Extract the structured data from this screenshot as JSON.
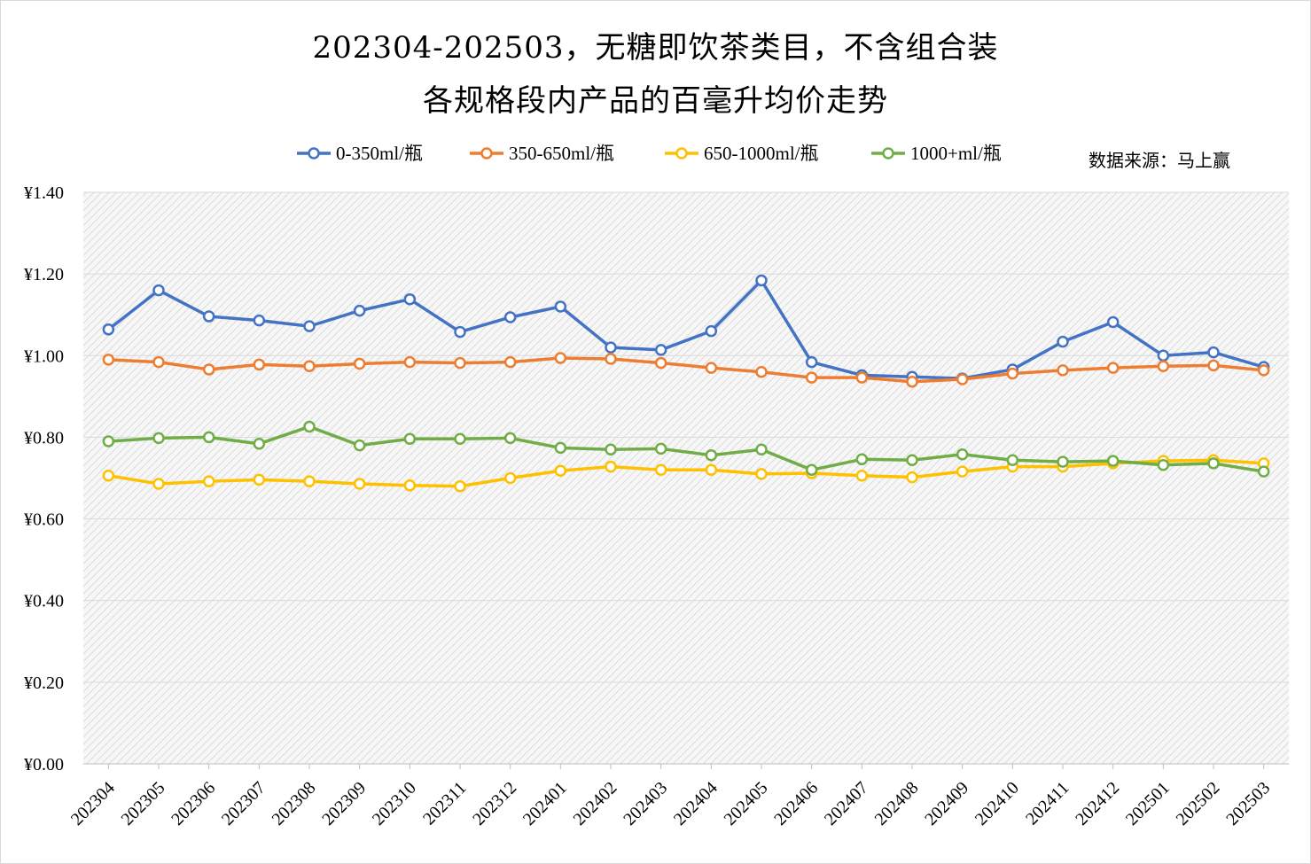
{
  "chart_data": {
    "type": "line",
    "title": "202304-202503，无糖即饮茶类目，不含组合装",
    "subtitle": "各规格段内产品的百毫升均价走势",
    "source_note": "数据来源：马上赢",
    "xlabel": "",
    "ylabel": "",
    "ylim": [
      0,
      1.4
    ],
    "yticks": [
      "¥0.00",
      "¥0.20",
      "¥0.40",
      "¥0.60",
      "¥0.80",
      "¥1.00",
      "¥1.20",
      "¥1.40"
    ],
    "grid": true,
    "legend_position": "top",
    "categories": [
      "202304",
      "202305",
      "202306",
      "202307",
      "202308",
      "202309",
      "202310",
      "202311",
      "202312",
      "202401",
      "202402",
      "202403",
      "202404",
      "202405",
      "202406",
      "202407",
      "202408",
      "202409",
      "202410",
      "202411",
      "202412",
      "202501",
      "202502",
      "202503"
    ],
    "series": [
      {
        "name": "0-350ml/瓶",
        "color": "#4472c4",
        "values": [
          1.064,
          1.16,
          1.096,
          1.086,
          1.072,
          1.11,
          1.138,
          1.058,
          1.094,
          1.12,
          1.02,
          1.014,
          1.06,
          1.184,
          0.984,
          0.952,
          0.948,
          0.944,
          0.966,
          1.034,
          1.082,
          1.0,
          1.008,
          0.972
        ]
      },
      {
        "name": "350-650ml/瓶",
        "color": "#ed7d31",
        "values": [
          0.99,
          0.984,
          0.966,
          0.978,
          0.974,
          0.98,
          0.984,
          0.982,
          0.984,
          0.994,
          0.992,
          0.982,
          0.97,
          0.96,
          0.946,
          0.946,
          0.936,
          0.942,
          0.956,
          0.964,
          0.97,
          0.974,
          0.976,
          0.964
        ]
      },
      {
        "name": "650-1000ml/瓶",
        "color": "#ffc000",
        "values": [
          0.706,
          0.686,
          0.692,
          0.696,
          0.692,
          0.686,
          0.682,
          0.68,
          0.7,
          0.718,
          0.728,
          0.72,
          0.72,
          0.71,
          0.712,
          0.706,
          0.702,
          0.716,
          0.728,
          0.728,
          0.736,
          0.742,
          0.744,
          0.736
        ]
      },
      {
        "name": "1000+ml/瓶",
        "color": "#70ad47",
        "values": [
          0.79,
          0.798,
          0.8,
          0.784,
          0.826,
          0.78,
          0.796,
          0.796,
          0.798,
          0.774,
          0.77,
          0.772,
          0.756,
          0.77,
          0.72,
          0.746,
          0.744,
          0.758,
          0.744,
          0.74,
          0.742,
          0.732,
          0.736,
          0.716
        ]
      }
    ]
  }
}
